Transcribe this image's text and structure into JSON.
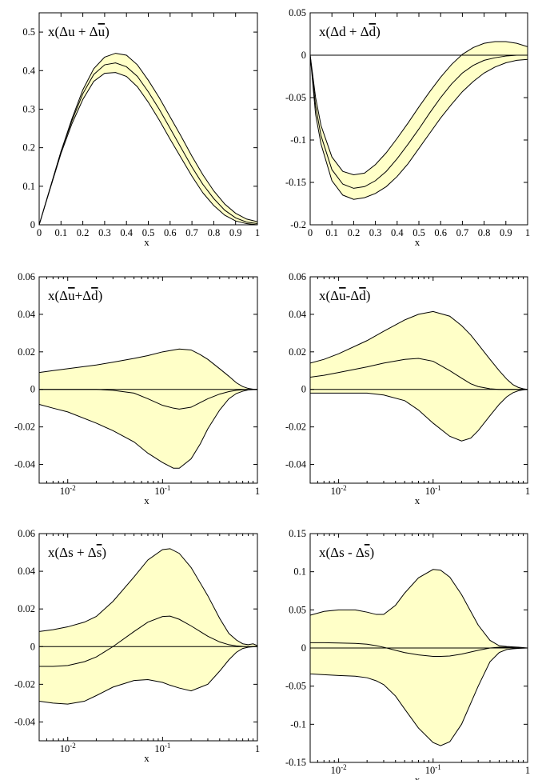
{
  "figure": {
    "band_color": "#ffffc8"
  },
  "chart_data": [
    {
      "id": "du-plus-dubar",
      "type": "area",
      "title": "x(Δu + Δu̅)",
      "label_prefix": "x(Δu + Δ",
      "label_bar": "u",
      "label_suffix": ")",
      "xlabel": "x",
      "ylabel": "",
      "xscale": "linear",
      "xlim": [
        0,
        1
      ],
      "ylim": [
        0,
        0.55
      ],
      "yticks": [
        0,
        0.1,
        0.2,
        0.3,
        0.4,
        0.5
      ],
      "yticklabels": [
        "0",
        "0.1",
        "0.2",
        "0.3",
        "0.4",
        "0.5"
      ],
      "xticks": [
        0,
        0.1,
        0.2,
        0.3,
        0.4,
        0.5,
        0.6,
        0.7,
        0.8,
        0.9,
        1
      ],
      "xticklabels": [
        "0",
        "0.1",
        "0.2",
        "0.3",
        "0.4",
        "0.5",
        "0.6",
        "0.7",
        "0.8",
        "0.9",
        "1"
      ],
      "zero_line": false,
      "x": [
        0,
        0.05,
        0.1,
        0.15,
        0.2,
        0.25,
        0.3,
        0.35,
        0.4,
        0.45,
        0.5,
        0.55,
        0.6,
        0.65,
        0.7,
        0.75,
        0.8,
        0.85,
        0.9,
        0.95,
        1.0
      ],
      "central": [
        0,
        0.095,
        0.19,
        0.27,
        0.34,
        0.39,
        0.415,
        0.42,
        0.41,
        0.385,
        0.345,
        0.3,
        0.25,
        0.2,
        0.15,
        0.105,
        0.068,
        0.038,
        0.018,
        0.007,
        0.003
      ],
      "upper": [
        0,
        0.095,
        0.19,
        0.275,
        0.35,
        0.405,
        0.435,
        0.445,
        0.44,
        0.415,
        0.375,
        0.33,
        0.28,
        0.23,
        0.178,
        0.13,
        0.088,
        0.054,
        0.03,
        0.015,
        0.008
      ],
      "lower": [
        0,
        0.093,
        0.185,
        0.262,
        0.325,
        0.372,
        0.393,
        0.395,
        0.385,
        0.358,
        0.318,
        0.272,
        0.222,
        0.174,
        0.126,
        0.083,
        0.05,
        0.025,
        0.01,
        0.003,
        0.0
      ]
    },
    {
      "id": "dd-plus-ddbar",
      "type": "area",
      "title": "x(Δd + Δd̅)",
      "label_prefix": "x(Δd + Δ",
      "label_bar": "d",
      "label_suffix": ")",
      "xlabel": "x",
      "ylabel": "",
      "xscale": "linear",
      "xlim": [
        0,
        1
      ],
      "ylim": [
        -0.2,
        0.05
      ],
      "yticks": [
        -0.2,
        -0.15,
        -0.1,
        -0.05,
        0,
        0.05
      ],
      "yticklabels": [
        "-0.2",
        "-0.15",
        "-0.1",
        "-0.05",
        "0",
        "0.05"
      ],
      "xticks": [
        0,
        0.1,
        0.2,
        0.3,
        0.4,
        0.5,
        0.6,
        0.7,
        0.8,
        0.9,
        1
      ],
      "xticklabels": [
        "0",
        "0.1",
        "0.2",
        "0.3",
        "0.4",
        "0.5",
        "0.6",
        "0.7",
        "0.8",
        "0.9",
        "1"
      ],
      "zero_line": true,
      "x": [
        0,
        0.025,
        0.05,
        0.1,
        0.15,
        0.2,
        0.25,
        0.3,
        0.35,
        0.4,
        0.45,
        0.5,
        0.55,
        0.6,
        0.65,
        0.7,
        0.75,
        0.8,
        0.85,
        0.9,
        0.95,
        1.0
      ],
      "central": [
        0,
        -0.06,
        -0.095,
        -0.135,
        -0.152,
        -0.157,
        -0.155,
        -0.148,
        -0.137,
        -0.122,
        -0.105,
        -0.087,
        -0.068,
        -0.05,
        -0.034,
        -0.021,
        -0.012,
        -0.006,
        -0.003,
        -0.001,
        0.0,
        0.0
      ],
      "upper": [
        0,
        -0.05,
        -0.083,
        -0.12,
        -0.137,
        -0.141,
        -0.139,
        -0.129,
        -0.115,
        -0.098,
        -0.08,
        -0.061,
        -0.043,
        -0.026,
        -0.011,
        0.001,
        0.009,
        0.014,
        0.016,
        0.016,
        0.014,
        0.01
      ],
      "lower": [
        0,
        -0.07,
        -0.105,
        -0.148,
        -0.165,
        -0.17,
        -0.168,
        -0.163,
        -0.155,
        -0.143,
        -0.128,
        -0.11,
        -0.092,
        -0.074,
        -0.058,
        -0.043,
        -0.031,
        -0.021,
        -0.014,
        -0.009,
        -0.006,
        -0.005
      ]
    },
    {
      "id": "dubar-plus-ddbar",
      "type": "area",
      "title": "x(Δu̅+Δd̅)",
      "label_prefix": "x(Δ",
      "label_bar": "u",
      "label_mid": "+Δ",
      "label_bar2": "d",
      "label_suffix": ")",
      "xlabel": "x",
      "ylabel": "",
      "xscale": "log",
      "xlim": [
        0.005,
        1
      ],
      "ylim": [
        -0.05,
        0.06
      ],
      "yticks": [
        -0.04,
        -0.02,
        0,
        0.02,
        0.04,
        0.06
      ],
      "yticklabels": [
        "-0.04",
        "-0.02",
        "0",
        "0.02",
        "0.04",
        "0.06"
      ],
      "xticks": [
        0.01,
        0.1,
        1
      ],
      "xticklabels": [
        [
          "10",
          "-2"
        ],
        [
          "10",
          "-1"
        ],
        [
          "1",
          ""
        ]
      ],
      "zero_line": true,
      "x": [
        0.005,
        0.007,
        0.01,
        0.02,
        0.03,
        0.05,
        0.07,
        0.1,
        0.13,
        0.15,
        0.2,
        0.25,
        0.3,
        0.4,
        0.5,
        0.6,
        0.7,
        0.8,
        0.9,
        1.0
      ],
      "central": [
        0,
        0,
        0,
        0,
        -0.0005,
        -0.002,
        -0.005,
        -0.0085,
        -0.01,
        -0.0105,
        -0.0095,
        -0.007,
        -0.005,
        -0.0025,
        -0.0012,
        -0.0005,
        -0.0002,
        -0.0001,
        0,
        0
      ],
      "upper": [
        0.009,
        0.01,
        0.011,
        0.013,
        0.0145,
        0.0165,
        0.018,
        0.02,
        0.021,
        0.0215,
        0.021,
        0.0185,
        0.016,
        0.011,
        0.007,
        0.0035,
        0.0015,
        0.0005,
        0.0001,
        0
      ],
      "lower": [
        -0.008,
        -0.01,
        -0.012,
        -0.018,
        -0.022,
        -0.028,
        -0.034,
        -0.039,
        -0.042,
        -0.042,
        -0.037,
        -0.029,
        -0.021,
        -0.011,
        -0.005,
        -0.0022,
        -0.001,
        -0.0003,
        -0.0001,
        0
      ]
    },
    {
      "id": "dubar-minus-ddbar",
      "type": "area",
      "title": "x(Δu̅-Δd̅)",
      "label_prefix": "x(Δ",
      "label_bar": "u",
      "label_mid": "-Δ",
      "label_bar2": "d",
      "label_suffix": ")",
      "xlabel": "x",
      "ylabel": "",
      "xscale": "log",
      "xlim": [
        0.005,
        1
      ],
      "ylim": [
        -0.05,
        0.06
      ],
      "yticks": [
        -0.04,
        -0.02,
        0,
        0.02,
        0.04,
        0.06
      ],
      "yticklabels": [
        "-0.04",
        "-0.02",
        "0",
        "0.02",
        "0.04",
        "0.06"
      ],
      "xticks": [
        0.01,
        0.1,
        1
      ],
      "xticklabels": [
        [
          "10",
          "-2"
        ],
        [
          "10",
          "-1"
        ],
        [
          "1",
          ""
        ]
      ],
      "zero_line": true,
      "x": [
        0.005,
        0.007,
        0.01,
        0.02,
        0.03,
        0.05,
        0.07,
        0.1,
        0.15,
        0.2,
        0.25,
        0.3,
        0.4,
        0.5,
        0.6,
        0.7,
        0.8,
        0.9,
        1.0
      ],
      "central": [
        0.0065,
        0.0075,
        0.009,
        0.012,
        0.014,
        0.016,
        0.0165,
        0.015,
        0.01,
        0.006,
        0.003,
        0.0015,
        0.0003,
        0,
        0,
        0,
        0,
        0,
        0
      ],
      "upper": [
        0.014,
        0.016,
        0.019,
        0.026,
        0.031,
        0.037,
        0.04,
        0.0415,
        0.039,
        0.034,
        0.029,
        0.024,
        0.016,
        0.01,
        0.0055,
        0.0025,
        0.001,
        0.0003,
        0
      ],
      "lower": [
        -0.002,
        -0.002,
        -0.002,
        -0.002,
        -0.003,
        -0.006,
        -0.011,
        -0.018,
        -0.025,
        -0.0275,
        -0.026,
        -0.022,
        -0.014,
        -0.008,
        -0.004,
        -0.0018,
        -0.0007,
        -0.0002,
        0
      ]
    },
    {
      "id": "ds-plus-dsbar",
      "type": "area",
      "title": "x(Δs + Δs̅)",
      "label_prefix": "x(Δs + Δ",
      "label_bar": "s",
      "label_suffix": ")",
      "xlabel": "x",
      "ylabel": "",
      "xscale": "log",
      "xlim": [
        0.005,
        1
      ],
      "ylim": [
        -0.05,
        0.06
      ],
      "yticks": [
        -0.04,
        -0.02,
        0,
        0.02,
        0.04,
        0.06
      ],
      "yticklabels": [
        "-0.04",
        "-0.02",
        "0",
        "0.02",
        "0.04",
        "0.06"
      ],
      "xticks": [
        0.01,
        0.1,
        1
      ],
      "xticklabels": [
        [
          "10",
          "-2"
        ],
        [
          "10",
          "-1"
        ],
        [
          "1",
          ""
        ]
      ],
      "zero_line": true,
      "x": [
        0.005,
        0.007,
        0.01,
        0.015,
        0.02,
        0.03,
        0.05,
        0.07,
        0.1,
        0.12,
        0.15,
        0.2,
        0.3,
        0.4,
        0.5,
        0.6,
        0.7,
        0.8,
        0.9,
        1.0
      ],
      "central": [
        -0.0105,
        -0.0105,
        -0.01,
        -0.008,
        -0.0055,
        0.0,
        0.008,
        0.013,
        0.016,
        0.0162,
        0.0145,
        0.011,
        0.0055,
        0.0025,
        0.001,
        0.0004,
        0.0001,
        0,
        0,
        0
      ],
      "upper": [
        0.008,
        0.009,
        0.0105,
        0.013,
        0.016,
        0.024,
        0.037,
        0.046,
        0.0515,
        0.052,
        0.0495,
        0.042,
        0.027,
        0.015,
        0.007,
        0.0035,
        0.0015,
        0.001,
        0.0015,
        0.0005
      ],
      "lower": [
        -0.029,
        -0.03,
        -0.0305,
        -0.029,
        -0.026,
        -0.0215,
        -0.018,
        -0.0175,
        -0.019,
        -0.0205,
        -0.022,
        -0.0235,
        -0.02,
        -0.013,
        -0.007,
        -0.003,
        -0.001,
        -0.0003,
        -0.0001,
        0
      ]
    },
    {
      "id": "ds-minus-dsbar",
      "type": "area",
      "title": "x(Δs - Δs̅)",
      "label_prefix": "x(Δs - Δ",
      "label_bar": "s",
      "label_suffix": ")",
      "xlabel": "x",
      "ylabel": "",
      "xscale": "log",
      "xlim": [
        0.005,
        1
      ],
      "ylim": [
        -0.15,
        0.15
      ],
      "yticks": [
        -0.15,
        -0.1,
        -0.05,
        0,
        0.05,
        0.1,
        0.15
      ],
      "yticklabels": [
        "-0.15",
        "-0.1",
        "-0.05",
        "0",
        "0.05",
        "0.1",
        "0.15"
      ],
      "xticks": [
        0.01,
        0.1,
        1
      ],
      "xticklabels": [
        [
          "10",
          "-2"
        ],
        [
          "10",
          "-1"
        ],
        [
          "1",
          ""
        ]
      ],
      "zero_line": true,
      "x": [
        0.005,
        0.007,
        0.01,
        0.015,
        0.02,
        0.025,
        0.03,
        0.04,
        0.05,
        0.07,
        0.1,
        0.12,
        0.15,
        0.2,
        0.3,
        0.4,
        0.5,
        0.6,
        0.7,
        0.8,
        0.9,
        1.0
      ],
      "central": [
        0.007,
        0.007,
        0.0065,
        0.006,
        0.005,
        0.003,
        0.001,
        -0.003,
        -0.006,
        -0.009,
        -0.011,
        -0.011,
        -0.0105,
        -0.008,
        -0.003,
        0.0,
        0.001,
        0.001,
        0.0005,
        0.0002,
        0,
        0
      ],
      "upper": [
        0.043,
        0.048,
        0.05,
        0.05,
        0.047,
        0.044,
        0.044,
        0.056,
        0.072,
        0.092,
        0.103,
        0.102,
        0.093,
        0.07,
        0.03,
        0.01,
        0.003,
        0.002,
        0.0015,
        0.001,
        0.0005,
        0
      ],
      "lower": [
        -0.034,
        -0.035,
        -0.036,
        -0.037,
        -0.039,
        -0.043,
        -0.048,
        -0.063,
        -0.08,
        -0.105,
        -0.124,
        -0.128,
        -0.123,
        -0.1,
        -0.05,
        -0.018,
        -0.006,
        -0.002,
        -0.001,
        -0.0005,
        -0.0002,
        0
      ]
    }
  ]
}
